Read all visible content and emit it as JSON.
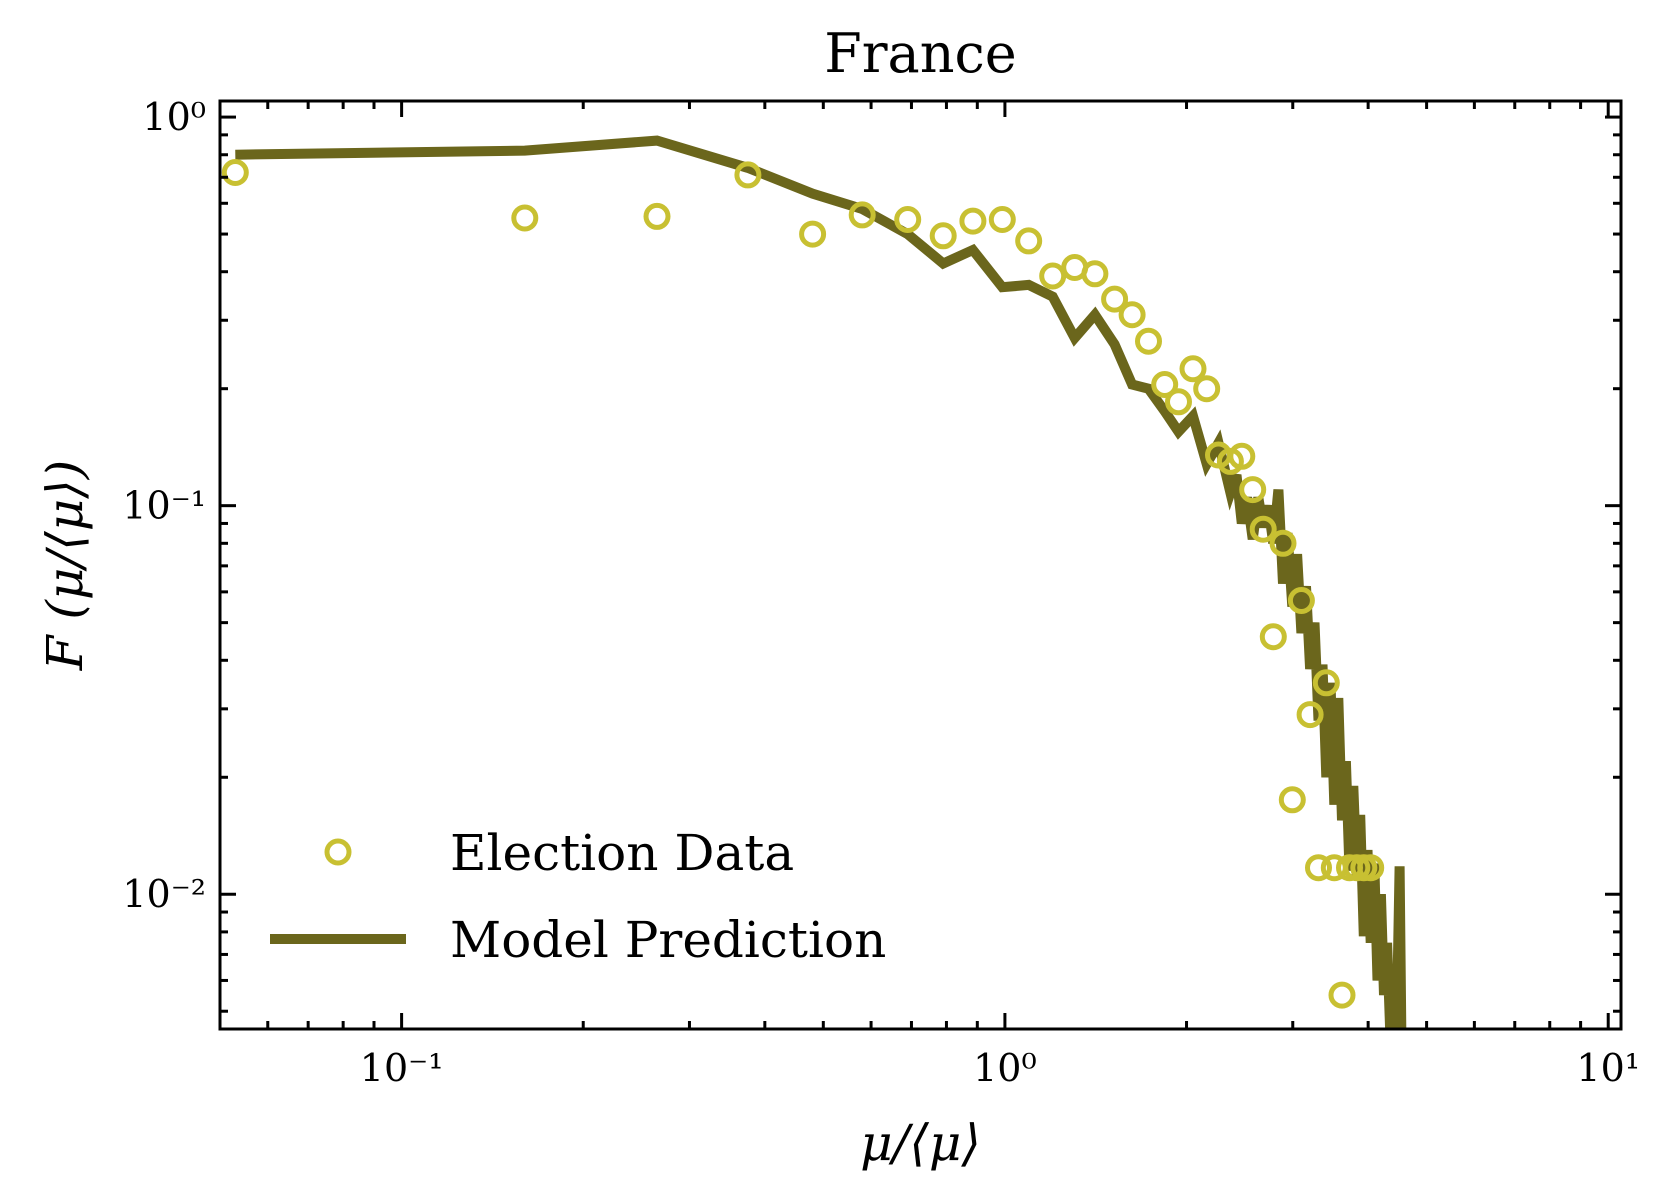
{
  "chart_data": {
    "type": "line",
    "title": "France",
    "xlabel": "μ/⟨μ⟩",
    "ylabel": "F (μ/⟨μ⟩)",
    "xscale": "log",
    "yscale": "log",
    "xlim": [
      0.05,
      10.5
    ],
    "ylim": [
      0.0045,
      1.1
    ],
    "grid": false,
    "legend_position": "lower-left",
    "x_ticks": [
      {
        "value": 0.1,
        "label": "10⁻¹"
      },
      {
        "value": 1,
        "label": "10⁰"
      },
      {
        "value": 10,
        "label": "10¹"
      }
    ],
    "y_ticks": [
      {
        "value": 0.01,
        "label": "10⁻²"
      },
      {
        "value": 0.1,
        "label": "10⁻¹"
      },
      {
        "value": 1,
        "label": "10⁰"
      }
    ],
    "colors": {
      "data": "#c8c032",
      "model": "#6b661c"
    },
    "series": [
      {
        "name": "Election Data",
        "kind": "scatter",
        "marker": "open-circle",
        "points": [
          [
            0.053,
            0.72
          ],
          [
            0.16,
            0.55
          ],
          [
            0.265,
            0.555
          ],
          [
            0.375,
            0.71
          ],
          [
            0.48,
            0.5
          ],
          [
            0.58,
            0.56
          ],
          [
            0.69,
            0.545
          ],
          [
            0.79,
            0.495
          ],
          [
            0.885,
            0.54
          ],
          [
            0.99,
            0.545
          ],
          [
            1.095,
            0.48
          ],
          [
            1.2,
            0.39
          ],
          [
            1.305,
            0.41
          ],
          [
            1.41,
            0.395
          ],
          [
            1.52,
            0.34
          ],
          [
            1.625,
            0.31
          ],
          [
            1.73,
            0.265
          ],
          [
            1.84,
            0.205
          ],
          [
            1.94,
            0.185
          ],
          [
            2.05,
            0.225
          ],
          [
            2.16,
            0.2
          ],
          [
            2.26,
            0.135
          ],
          [
            2.365,
            0.13
          ],
          [
            2.47,
            0.134
          ],
          [
            2.575,
            0.11
          ],
          [
            2.68,
            0.087
          ],
          [
            2.785,
            0.046
          ],
          [
            2.89,
            0.08
          ],
          [
            2.995,
            0.0175
          ],
          [
            3.1,
            0.057
          ],
          [
            3.205,
            0.029
          ],
          [
            3.31,
            0.0117
          ],
          [
            3.41,
            0.035
          ],
          [
            3.515,
            0.0117
          ],
          [
            3.62,
            0.0055
          ],
          [
            3.725,
            0.0117
          ],
          [
            3.83,
            0.0117
          ],
          [
            3.935,
            0.0117
          ],
          [
            4.04,
            0.0117
          ]
        ]
      },
      {
        "name": "Model Prediction",
        "kind": "line",
        "points": [
          [
            0.053,
            0.8
          ],
          [
            0.16,
            0.82
          ],
          [
            0.265,
            0.87
          ],
          [
            0.375,
            0.74
          ],
          [
            0.48,
            0.635
          ],
          [
            0.58,
            0.58
          ],
          [
            0.69,
            0.5
          ],
          [
            0.79,
            0.42
          ],
          [
            0.885,
            0.455
          ],
          [
            0.99,
            0.365
          ],
          [
            1.095,
            0.37
          ],
          [
            1.2,
            0.345
          ],
          [
            1.305,
            0.27
          ],
          [
            1.41,
            0.31
          ],
          [
            1.52,
            0.26
          ],
          [
            1.625,
            0.205
          ],
          [
            1.73,
            0.2
          ],
          [
            1.84,
            0.175
          ],
          [
            1.94,
            0.155
          ],
          [
            2.05,
            0.17
          ],
          [
            2.16,
            0.128
          ],
          [
            2.26,
            0.145
          ],
          [
            2.365,
            0.108
          ],
          [
            2.42,
            0.12
          ],
          [
            2.47,
            0.09
          ],
          [
            2.52,
            0.105
          ],
          [
            2.575,
            0.082
          ],
          [
            2.63,
            0.105
          ],
          [
            2.68,
            0.088
          ],
          [
            2.73,
            0.1
          ],
          [
            2.785,
            0.08
          ],
          [
            2.84,
            0.11
          ],
          [
            2.89,
            0.063
          ],
          [
            2.94,
            0.085
          ],
          [
            2.995,
            0.055
          ],
          [
            3.05,
            0.075
          ],
          [
            3.1,
            0.047
          ],
          [
            3.155,
            0.062
          ],
          [
            3.205,
            0.038
          ],
          [
            3.26,
            0.05
          ],
          [
            3.31,
            0.028
          ],
          [
            3.36,
            0.039
          ],
          [
            3.41,
            0.02
          ],
          [
            3.465,
            0.035
          ],
          [
            3.515,
            0.017
          ],
          [
            3.57,
            0.032
          ],
          [
            3.62,
            0.0155
          ],
          [
            3.675,
            0.022
          ],
          [
            3.725,
            0.0115
          ],
          [
            3.78,
            0.019
          ],
          [
            3.83,
            0.011
          ],
          [
            3.88,
            0.016
          ],
          [
            3.935,
            0.0078
          ],
          [
            3.99,
            0.013
          ],
          [
            4.04,
            0.0075
          ],
          [
            4.095,
            0.012
          ],
          [
            4.145,
            0.006
          ],
          [
            4.2,
            0.01
          ],
          [
            4.25,
            0.0055
          ],
          [
            4.3,
            0.0075
          ],
          [
            4.35,
            0.0045
          ],
          [
            4.41,
            0.0065
          ],
          [
            4.46,
            0.0045
          ],
          [
            4.51,
            0.0118
          ],
          [
            4.54,
            0.0045
          ]
        ]
      }
    ]
  }
}
